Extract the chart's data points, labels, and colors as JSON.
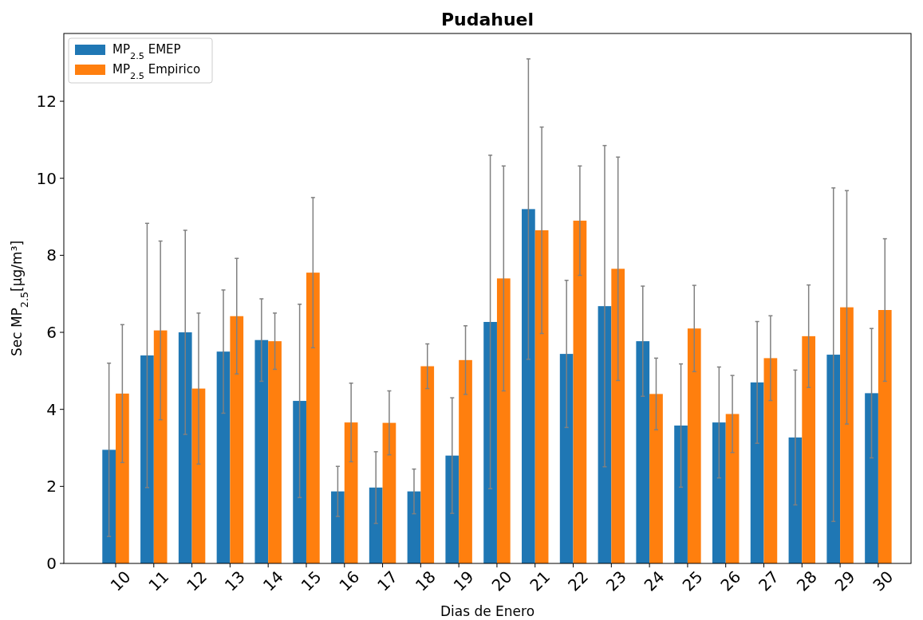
{
  "chart_data": {
    "type": "bar",
    "title": "Pudahuel",
    "xlabel": "Dias de Enero",
    "ylabel": "Sec MP$_{2.5}$[μg/m³]",
    "categories": [
      "10",
      "11",
      "12",
      "13",
      "14",
      "15",
      "16",
      "17",
      "18",
      "19",
      "20",
      "21",
      "22",
      "23",
      "24",
      "25",
      "26",
      "27",
      "28",
      "29",
      "30"
    ],
    "series": [
      {
        "name": "MP$_{2.5}$ EMEP",
        "color": "#1f77b4",
        "values": [
          2.95,
          5.4,
          6.0,
          5.5,
          5.8,
          4.22,
          1.87,
          1.97,
          1.87,
          2.8,
          6.27,
          9.2,
          5.44,
          6.68,
          5.77,
          3.58,
          3.66,
          4.7,
          3.27,
          5.42,
          4.42
        ],
        "errors": [
          2.25,
          3.43,
          2.65,
          1.6,
          1.07,
          2.51,
          0.65,
          0.93,
          0.58,
          1.5,
          4.33,
          3.9,
          1.91,
          4.17,
          1.43,
          1.6,
          1.44,
          1.58,
          1.75,
          4.33,
          1.68
        ]
      },
      {
        "name": "MP$_{2.5}$ Empirico",
        "color": "#ff7f0e",
        "values": [
          4.41,
          6.05,
          4.54,
          6.42,
          5.77,
          7.55,
          3.66,
          3.65,
          5.12,
          5.28,
          7.4,
          8.65,
          8.9,
          7.65,
          4.4,
          6.1,
          3.88,
          5.33,
          5.9,
          6.65,
          6.58
        ],
        "errors": [
          1.79,
          2.32,
          1.96,
          1.5,
          0.73,
          1.95,
          1.02,
          0.83,
          0.58,
          0.89,
          2.92,
          2.68,
          1.42,
          2.9,
          0.93,
          1.12,
          1.0,
          1.1,
          1.33,
          3.03,
          1.85
        ]
      }
    ],
    "ylim": [
      0,
      13.76
    ],
    "yticks": [
      0,
      2,
      4,
      6,
      8,
      10,
      12
    ],
    "legend": "top left",
    "grid": false
  }
}
